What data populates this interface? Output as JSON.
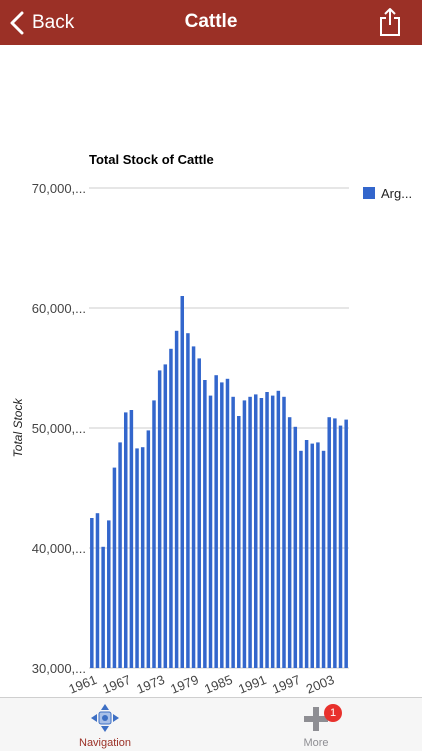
{
  "header": {
    "back_label": "Back",
    "title": "Cattle",
    "back_icon": "chevron-left-icon",
    "share_icon": "share-icon"
  },
  "chart_data": {
    "type": "bar",
    "title": "Total Stock of Cattle",
    "ylabel": "Total Stock",
    "xlabel": "",
    "ylim": [
      30000000,
      70000000
    ],
    "y_ticks": [
      30000000,
      40000000,
      50000000,
      60000000,
      70000000
    ],
    "y_tick_labels": [
      "30,000,...",
      "40,000,...",
      "50,000,...",
      "60,000,...",
      "70,000,..."
    ],
    "x_tick_labels": [
      "1961",
      "1967",
      "1973",
      "1979",
      "1985",
      "1991",
      "1997",
      "2003"
    ],
    "legend_placement": "top-right",
    "grid": true,
    "bar_color": "#3366cc",
    "categories": [
      "1961",
      "1962",
      "1963",
      "1964",
      "1965",
      "1966",
      "1967",
      "1968",
      "1969",
      "1970",
      "1971",
      "1972",
      "1973",
      "1974",
      "1975",
      "1976",
      "1977",
      "1978",
      "1979",
      "1980",
      "1981",
      "1982",
      "1983",
      "1984",
      "1985",
      "1986",
      "1987",
      "1988",
      "1989",
      "1990",
      "1991",
      "1992",
      "1993",
      "1994",
      "1995",
      "1996",
      "1997",
      "1998",
      "1999",
      "2000",
      "2001",
      "2002",
      "2003",
      "2004",
      "2005",
      "2006"
    ],
    "series": [
      {
        "name": "Arg...",
        "values": [
          42500000,
          42900000,
          40100000,
          42300000,
          46700000,
          48800000,
          51300000,
          51500000,
          48300000,
          48400000,
          49800000,
          52300000,
          54800000,
          55300000,
          56600000,
          58100000,
          61000000,
          57900000,
          56800000,
          55800000,
          54000000,
          52700000,
          54400000,
          53800000,
          54100000,
          52600000,
          51000000,
          52300000,
          52600000,
          52800000,
          52500000,
          53000000,
          52700000,
          53100000,
          52600000,
          50900000,
          50100000,
          48100000,
          49000000,
          48700000,
          48800000,
          48100000,
          50900000,
          50800000,
          50200000,
          50700000
        ]
      }
    ]
  },
  "tabbar": {
    "navigation_label": "Navigation",
    "navigation_icon": "navigation-arrows-icon",
    "more_label": "More",
    "more_icon": "plus-icon",
    "more_badge": "1",
    "active_color": "#9b3026"
  }
}
